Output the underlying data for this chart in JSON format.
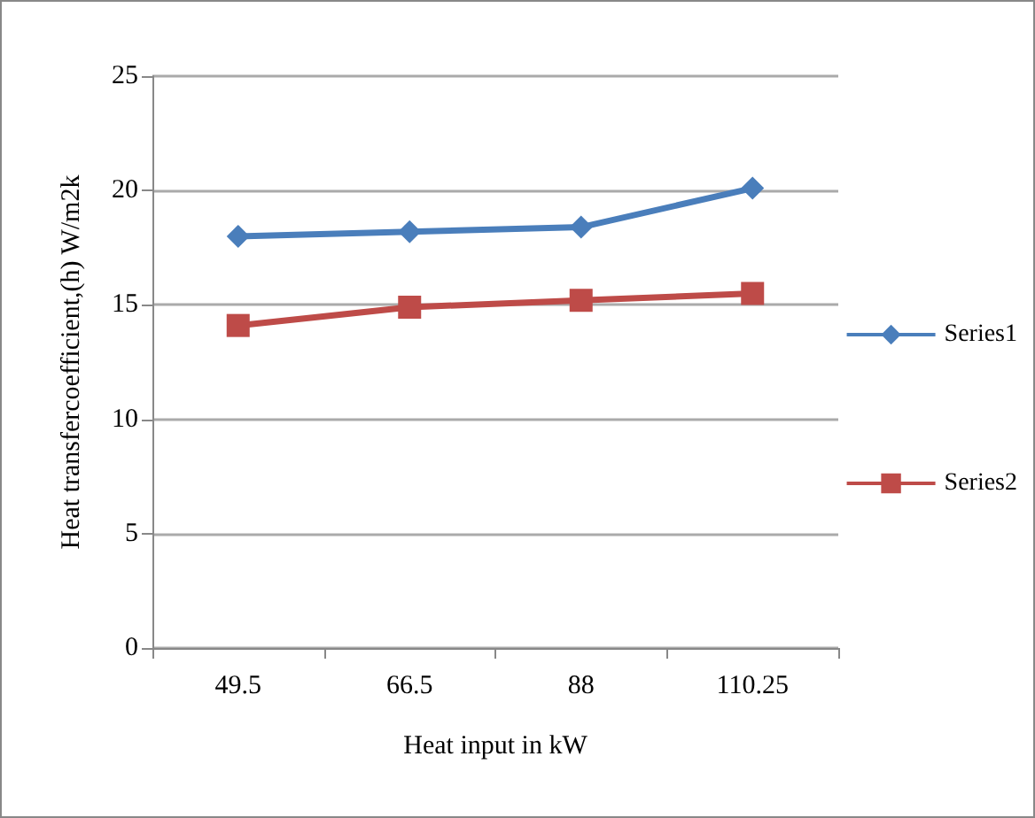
{
  "chart_data": {
    "type": "line",
    "xlabel": "Heat input in kW",
    "ylabel": "Heat transfercoefficient,(h) W/m2k",
    "categories": [
      "49.5",
      "66.5",
      "88",
      "110.25"
    ],
    "series": [
      {
        "name": "Series1",
        "color": "#4a7ebb",
        "marker": "diamond",
        "values": [
          18.0,
          18.2,
          18.4,
          20.1
        ]
      },
      {
        "name": "Series2",
        "color": "#be4b48",
        "marker": "square",
        "values": [
          14.1,
          14.9,
          15.2,
          15.5
        ]
      }
    ],
    "ylim": [
      0,
      25
    ],
    "yticks": [
      0,
      5,
      10,
      15,
      20,
      25
    ],
    "grid": "y",
    "legend": "right"
  }
}
